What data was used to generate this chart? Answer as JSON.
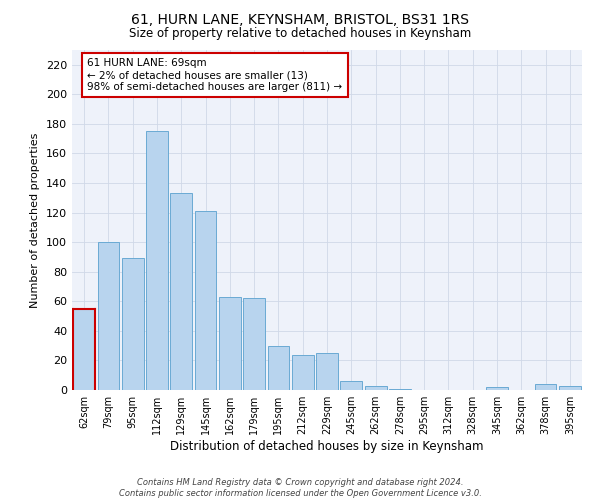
{
  "title": "61, HURN LANE, KEYNSHAM, BRISTOL, BS31 1RS",
  "subtitle": "Size of property relative to detached houses in Keynsham",
  "xlabel": "Distribution of detached houses by size in Keynsham",
  "ylabel": "Number of detached properties",
  "bar_color": "#b8d4ee",
  "bar_edge_color": "#6aaad4",
  "highlight_edge_color": "#cc0000",
  "background_color": "#ffffff",
  "plot_bg_color": "#eef2fa",
  "grid_color": "#d0d8e8",
  "categories": [
    "62sqm",
    "79sqm",
    "95sqm",
    "112sqm",
    "129sqm",
    "145sqm",
    "162sqm",
    "179sqm",
    "195sqm",
    "212sqm",
    "229sqm",
    "245sqm",
    "262sqm",
    "278sqm",
    "295sqm",
    "312sqm",
    "328sqm",
    "345sqm",
    "362sqm",
    "378sqm",
    "395sqm"
  ],
  "values": [
    55,
    100,
    89,
    175,
    133,
    121,
    63,
    62,
    30,
    24,
    25,
    6,
    3,
    1,
    0,
    0,
    0,
    2,
    0,
    4,
    3
  ],
  "highlight_bin_index": 0,
  "annotation_line1": "61 HURN LANE: 69sqm",
  "annotation_line2": "← 2% of detached houses are smaller (13)",
  "annotation_line3": "98% of semi-detached houses are larger (811) →",
  "ylim": [
    0,
    230
  ],
  "yticks": [
    0,
    20,
    40,
    60,
    80,
    100,
    120,
    140,
    160,
    180,
    200,
    220
  ],
  "footer_line1": "Contains HM Land Registry data © Crown copyright and database right 2024.",
  "footer_line2": "Contains public sector information licensed under the Open Government Licence v3.0."
}
